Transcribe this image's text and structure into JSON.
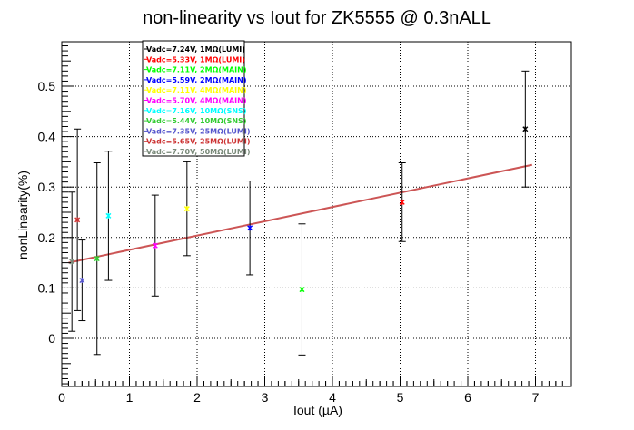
{
  "chart_data": {
    "type": "scatter",
    "title": "non-linearity vs Iout for ZK5555 @ 0.3nALL",
    "xlabel": "Iout (µA)",
    "ylabel": "nonLinearity(%)",
    "xlim": [
      0,
      7.5
    ],
    "ylim": [
      -0.1,
      0.6
    ],
    "xticks": [
      "0",
      "1",
      "2",
      "3",
      "4",
      "5",
      "6",
      "7"
    ],
    "yticks": [
      "0",
      "0.1",
      "0.2",
      "0.3",
      "0.4",
      "0.5"
    ],
    "grid": true,
    "legend_position": "top-left",
    "series": [
      {
        "name": "Vadc=7.24V, 1MΩ(LUMI)",
        "color": "#000000",
        "points": [
          {
            "x": 6.85,
            "y": 0.415,
            "err": 0.115
          }
        ]
      },
      {
        "name": "Vadc=5.33V, 1MΩ(LUMI)",
        "color": "#ff0000",
        "points": [
          {
            "x": 5.03,
            "y": 0.27,
            "err": 0.078
          }
        ]
      },
      {
        "name": "Vadc=7.11V, 2MΩ(MAIN)",
        "color": "#00ff00",
        "points": [
          {
            "x": 3.55,
            "y": 0.097,
            "err": 0.13
          }
        ]
      },
      {
        "name": "Vadc=5.59V, 2MΩ(MAIN)",
        "color": "#0000ff",
        "points": [
          {
            "x": 2.78,
            "y": 0.219,
            "err": 0.093
          }
        ]
      },
      {
        "name": "Vadc=7.11V, 4MΩ(MAIN)",
        "color": "#ffff00",
        "points": [
          {
            "x": 1.85,
            "y": 0.257,
            "err": 0.093
          }
        ]
      },
      {
        "name": "Vadc=5.70V, 4MΩ(MAIN)",
        "color": "#ff00ff",
        "points": [
          {
            "x": 1.38,
            "y": 0.184,
            "err": 0.1
          }
        ]
      },
      {
        "name": "Vadc=7.16V, 10MΩ(SNS)",
        "color": "#00ffff",
        "points": [
          {
            "x": 0.69,
            "y": 0.243,
            "err": 0.128
          }
        ]
      },
      {
        "name": "Vadc=5.44V, 10MΩ(SNS)",
        "color": "#33cc33",
        "points": [
          {
            "x": 0.52,
            "y": 0.158,
            "err": 0.19
          }
        ]
      },
      {
        "name": "Vadc=7.35V, 25MΩ(LUMI)",
        "color": "#5555cc",
        "points": [
          {
            "x": 0.3,
            "y": 0.115,
            "err": 0.08
          }
        ]
      },
      {
        "name": "Vadc=5.65V, 25MΩ(LUMI)",
        "color": "#cc3333",
        "points": [
          {
            "x": 0.23,
            "y": 0.235,
            "err": 0.18
          }
        ]
      },
      {
        "name": "Vadc=7.70V, 50MΩ(LUMI)",
        "color": "#7a8a7a",
        "points": [
          {
            "x": 0.15,
            "y": 0.152,
            "err": 0.138
          }
        ]
      }
    ],
    "fit_line": {
      "color": "#cc5555",
      "x": [
        0.1,
        6.95
      ],
      "y": [
        0.15,
        0.344
      ]
    }
  }
}
